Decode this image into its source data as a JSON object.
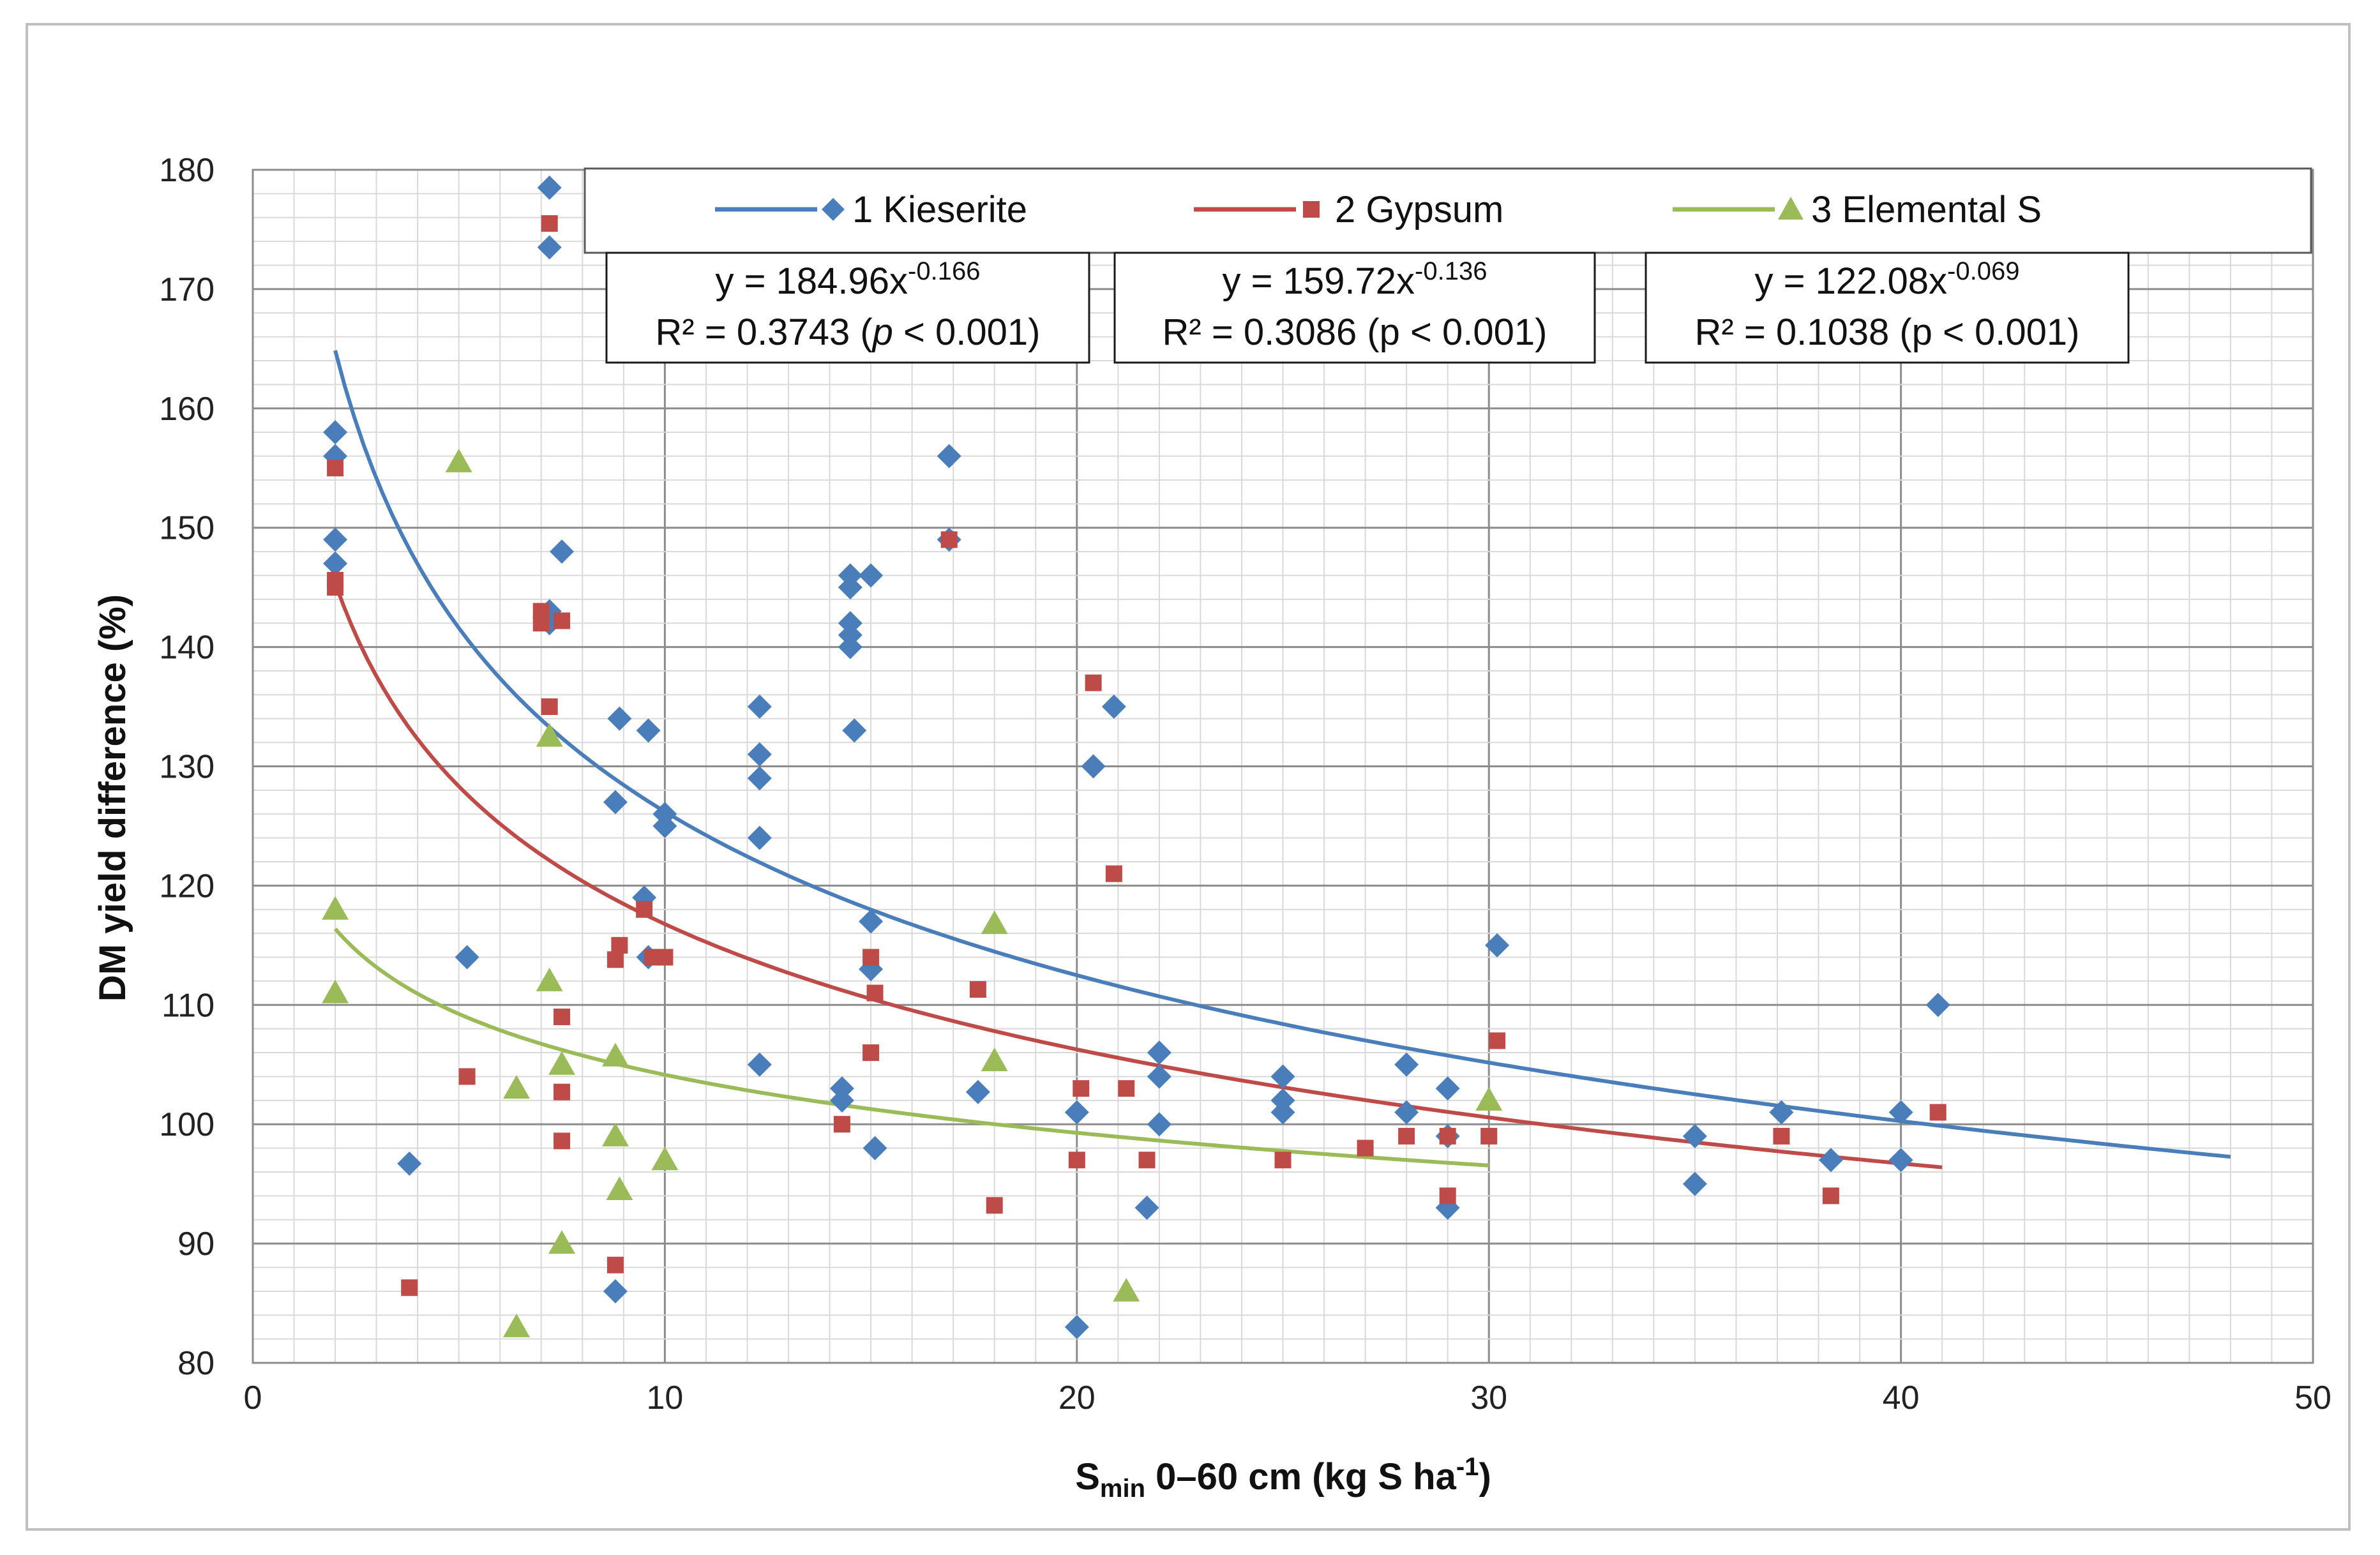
{
  "chart_data": {
    "type": "scatter",
    "title": "",
    "xlabel": {
      "main": "S",
      "sub": "min",
      "rest": " 0–60 cm (kg S ha",
      "sup": "-1",
      "close": ")"
    },
    "ylabel": "DM yield difference (%)",
    "xlim": [
      0,
      50
    ],
    "ylim": [
      80,
      180
    ],
    "x_ticks": [
      0,
      10,
      20,
      30,
      40,
      50
    ],
    "y_ticks": [
      80,
      90,
      100,
      110,
      120,
      130,
      140,
      150,
      160,
      170,
      180
    ],
    "x_tick_labels": [
      "0",
      "10",
      "20",
      "30",
      "40",
      "50"
    ],
    "y_tick_labels": [
      "80",
      "90",
      "100",
      "110",
      "120",
      "130",
      "140",
      "150",
      "160",
      "170",
      "180"
    ],
    "grid": "major-and-minor",
    "legend_position": "top",
    "series": [
      {
        "name": "1 Kieserite",
        "marker": "diamond",
        "color": "#4a7ebb",
        "line_color": "#4a7ebb",
        "fit": {
          "a": 184.96,
          "b": -0.166,
          "x_range": [
            2,
            48
          ]
        },
        "equation": {
          "prefix": "y = 184.96x",
          "exp": "-0.166"
        },
        "r2": {
          "prefix": "R² = 0.3743 (",
          "p": "p",
          "suffix": " < 0.001)"
        },
        "x": [
          2,
          2,
          2,
          2,
          3.8,
          5.2,
          7.2,
          7.2,
          7.2,
          7.2,
          7.5,
          8.8,
          8.8,
          8.9,
          9.5,
          9.6,
          9.6,
          10,
          10,
          12.3,
          12.3,
          12.3,
          12.3,
          12.3,
          14.3,
          14.3,
          14.5,
          14.5,
          14.5,
          14.5,
          14.5,
          14.6,
          15,
          15,
          15,
          15.1,
          16.9,
          16.9,
          17.6,
          20,
          20,
          20.4,
          20.9,
          22,
          22,
          22,
          21.7,
          25,
          25,
          25,
          28,
          28,
          29,
          29,
          29,
          30.2,
          35,
          35,
          37.1,
          38.3,
          40,
          40,
          40.9
        ],
        "y": [
          158,
          156,
          149,
          147,
          96.7,
          114,
          178.5,
          173.5,
          143,
          142,
          148,
          127,
          86,
          134,
          119,
          133,
          114,
          126,
          125,
          135,
          131,
          129,
          124,
          105,
          103,
          102,
          146,
          145,
          142,
          141,
          140,
          133,
          146,
          117,
          113,
          98,
          156,
          149,
          102.7,
          101,
          83,
          130,
          135,
          106,
          104,
          100,
          93,
          104,
          102,
          101,
          105,
          101,
          103,
          99,
          93,
          115,
          99,
          95,
          101,
          97,
          101,
          97,
          110
        ]
      },
      {
        "name": "2 Gypsum",
        "marker": "square",
        "color": "#be4b48",
        "line_color": "#be4b48",
        "fit": {
          "a": 159.72,
          "b": -0.136,
          "x_range": [
            2,
            41
          ]
        },
        "equation": {
          "prefix": "y = 159.72x",
          "exp": "-0.136"
        },
        "r2": {
          "prefix": "R² = 0.3086 (",
          "p": "p",
          "suffix": " < 0.001)"
        },
        "x": [
          2,
          2,
          2,
          3.8,
          5.2,
          7,
          7,
          7.2,
          7.2,
          7.5,
          7.5,
          7.5,
          7.5,
          8.8,
          8.9,
          8.8,
          9.5,
          9.7,
          10,
          14.3,
          15,
          15,
          15.1,
          16.9,
          17.6,
          18,
          20,
          20.1,
          20.4,
          20.9,
          21.2,
          21.7,
          25,
          27,
          28,
          29,
          29,
          30,
          30.2,
          37.1,
          38.3,
          40.9
        ],
        "y": [
          155,
          145.6,
          145,
          86.3,
          104,
          143,
          142,
          135,
          175.5,
          142.2,
          109,
          102.7,
          98.6,
          113.8,
          115,
          88.2,
          118,
          114,
          114,
          100,
          114,
          106,
          111,
          149,
          111.3,
          93.2,
          97,
          103,
          137,
          121,
          103,
          97,
          97,
          98,
          99,
          99,
          94,
          99,
          107,
          99,
          94,
          101
        ]
      },
      {
        "name": "3 Elemental S",
        "marker": "triangle",
        "color": "#9bbb59",
        "line_color": "#9bbb59",
        "fit": {
          "a": 122.08,
          "b": -0.069,
          "x_range": [
            2,
            30
          ]
        },
        "equation": {
          "prefix": "y = 122.08x",
          "exp": "-0.069"
        },
        "r2": {
          "prefix": "R² = 0.1038 (",
          "p": "p",
          "suffix": " < 0.001)"
        },
        "x": [
          2,
          2,
          5,
          6.4,
          6.4,
          7.2,
          7.2,
          7.5,
          7.5,
          8.8,
          8.8,
          8.9,
          10,
          18,
          18,
          21.2,
          30
        ],
        "y": [
          118,
          111,
          155.5,
          103,
          83,
          132.5,
          112,
          105,
          90,
          105.7,
          99,
          94.5,
          97,
          116.8,
          105.3,
          86,
          102
        ]
      }
    ]
  }
}
